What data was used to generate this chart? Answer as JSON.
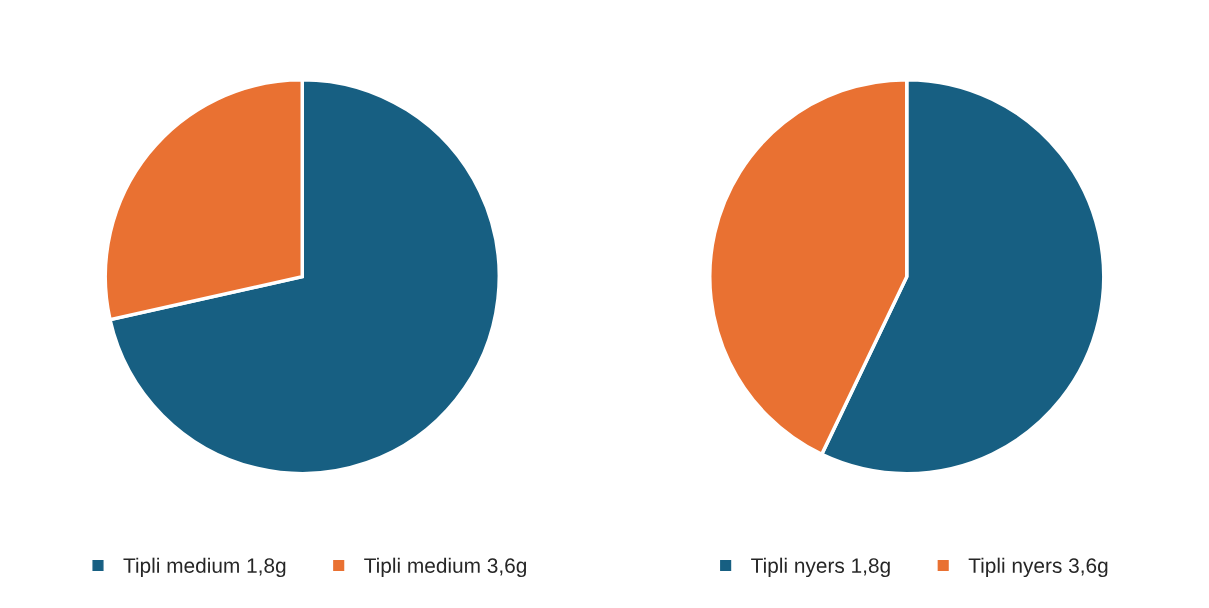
{
  "chart_data": [
    {
      "type": "pie",
      "categories": [
        "Tipli medium 1,8g",
        "Tipli medium 3,6g"
      ],
      "values": [
        71.5,
        28.5
      ],
      "colors": [
        "#175f82",
        "#e97132"
      ],
      "legend": "bottom"
    },
    {
      "type": "pie",
      "categories": [
        "Tipli nyers 1,8g",
        "Tipli nyers 3,6g"
      ],
      "values": [
        57.1,
        42.9
      ],
      "colors": [
        "#175f82",
        "#e97132"
      ],
      "legend": "bottom"
    }
  ]
}
